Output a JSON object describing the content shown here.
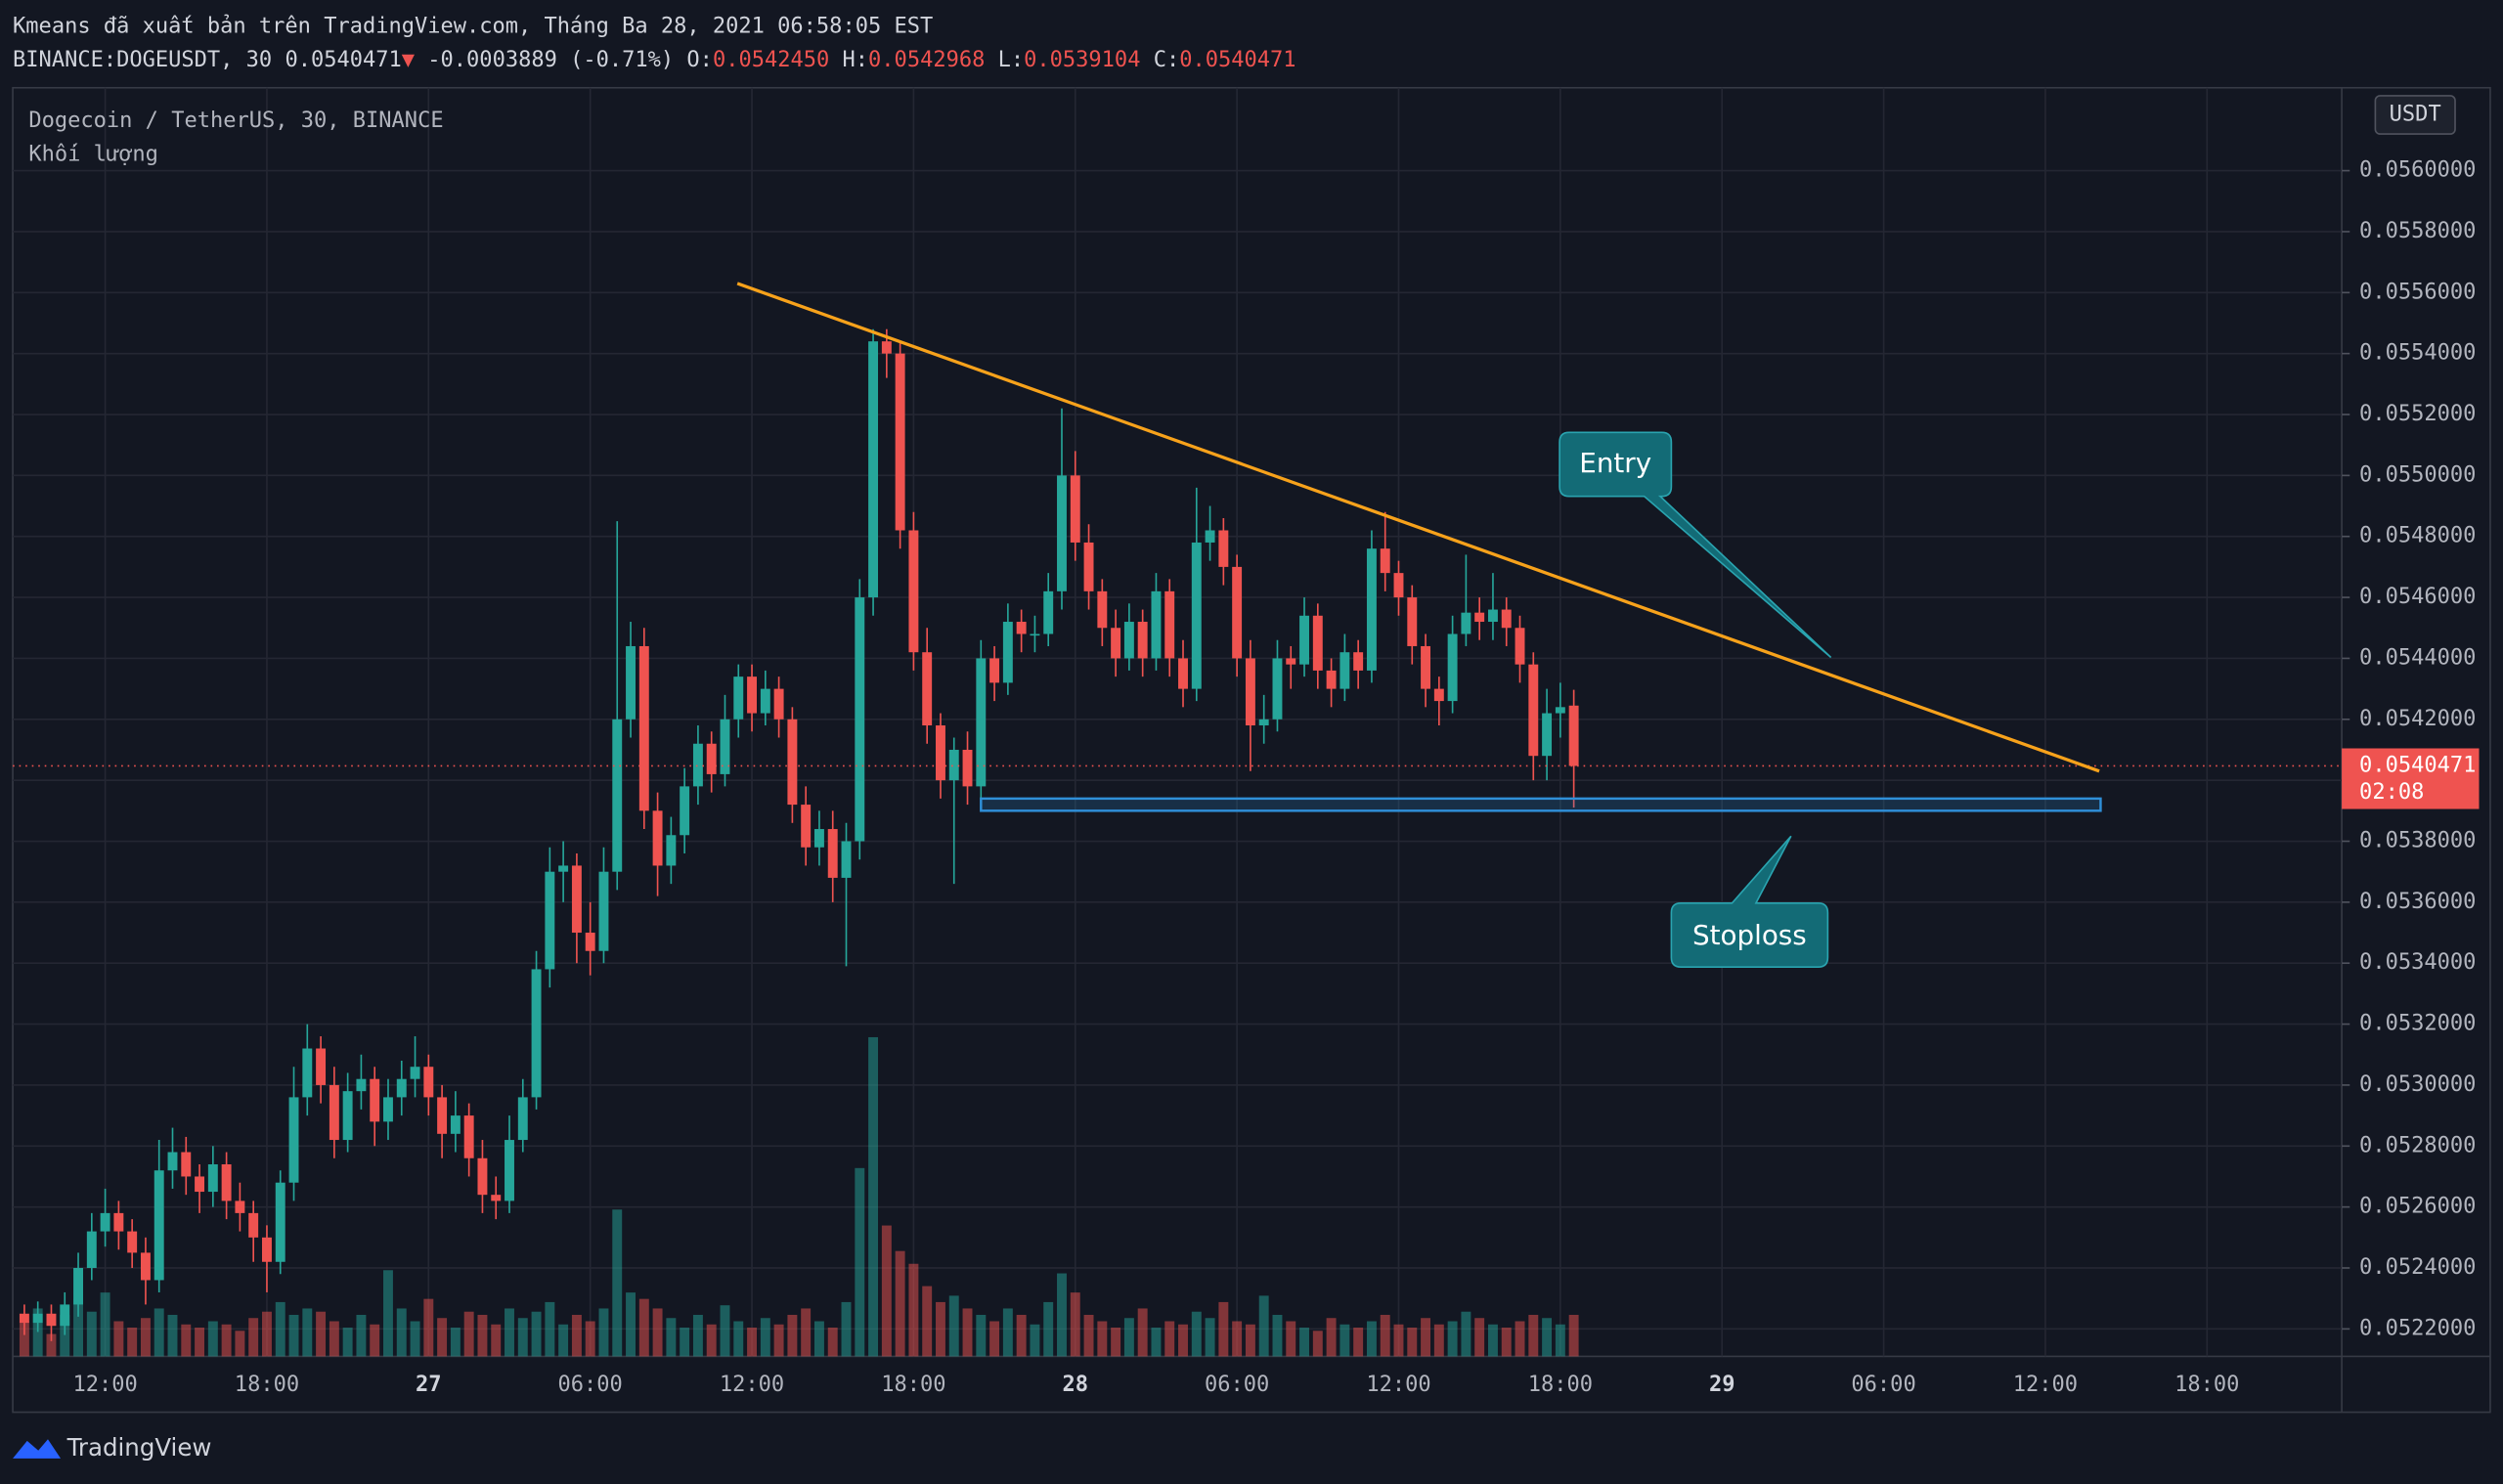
{
  "chart_data": {
    "type": "candlestick",
    "title": "Kmeans đã xuất bản trên TradingView.com, Tháng Ba 28, 2021 06:58:05 EST",
    "symbol": "BINANCE:DOGEUSDT, 30",
    "header_last": "0.0540471",
    "header_arrow": "▼",
    "header_change": "-0.0003889 (-0.71%)",
    "header_ohlc": [
      {
        "label": "O:",
        "value": "0.0542450"
      },
      {
        "label": "H:",
        "value": "0.0542968"
      },
      {
        "label": "L:",
        "value": "0.0539104"
      },
      {
        "label": "C:",
        "value": "0.0540471"
      }
    ],
    "legend": "Dogecoin / TetherUS, 30, BINANCE",
    "volume_label": "Khối lượng",
    "y_axis_label": "USDT",
    "up_color": "#26a69a",
    "down_color": "#ef5350",
    "xlim": [
      8.57,
      95
    ],
    "xticks": [
      {
        "value": 12,
        "label": "12:00"
      },
      {
        "value": 18,
        "label": "18:00"
      },
      {
        "value": 24,
        "label": "27"
      },
      {
        "value": 30,
        "label": "06:00"
      },
      {
        "value": 36,
        "label": "12:00"
      },
      {
        "value": 42,
        "label": "18:00"
      },
      {
        "value": 48,
        "label": "28"
      },
      {
        "value": 54,
        "label": "06:00"
      },
      {
        "value": 60,
        "label": "12:00"
      },
      {
        "value": 66,
        "label": "18:00"
      },
      {
        "value": 72,
        "label": "29"
      },
      {
        "value": 78,
        "label": "06:00"
      },
      {
        "value": 84,
        "label": "12:00"
      },
      {
        "value": 90,
        "label": "18:00"
      }
    ],
    "ylim": [
      0.05211,
      0.056272
    ],
    "yticks": [
      {
        "value": 0.0522,
        "label": "0.0522000"
      },
      {
        "value": 0.0524,
        "label": "0.0524000"
      },
      {
        "value": 0.0526,
        "label": "0.0526000"
      },
      {
        "value": 0.0528,
        "label": "0.0528000"
      },
      {
        "value": 0.053,
        "label": "0.0530000"
      },
      {
        "value": 0.0532,
        "label": "0.0532000"
      },
      {
        "value": 0.0534,
        "label": "0.0534000"
      },
      {
        "value": 0.0536,
        "label": "0.0536000"
      },
      {
        "value": 0.0538,
        "label": "0.0538000"
      },
      {
        "value": 0.054,
        "label": "0.0540000"
      },
      {
        "value": 0.0542,
        "label": "0.0542000"
      },
      {
        "value": 0.0544,
        "label": "0.0544000"
      },
      {
        "value": 0.0546,
        "label": "0.0546000"
      },
      {
        "value": 0.0548,
        "label": "0.0548000"
      },
      {
        "value": 0.055,
        "label": "0.0550000"
      },
      {
        "value": 0.0552,
        "label": "0.0552000"
      },
      {
        "value": 0.0554,
        "label": "0.0554000"
      },
      {
        "value": 0.0556,
        "label": "0.0556000"
      },
      {
        "value": 0.0558,
        "label": "0.0558000"
      },
      {
        "value": 0.056,
        "label": "0.0560000"
      }
    ],
    "grid": true,
    "x": [
      9,
      9.5,
      10,
      10.5,
      11,
      11.5,
      12,
      12.5,
      13,
      13.5,
      14,
      14.5,
      15,
      15.5,
      16,
      16.5,
      17,
      17.5,
      18,
      18.5,
      19,
      19.5,
      20,
      20.5,
      21,
      21.5,
      22,
      22.5,
      23,
      23.5,
      24,
      24.5,
      25,
      25.5,
      26,
      26.5,
      27,
      27.5,
      28,
      28.5,
      29,
      29.5,
      30,
      30.5,
      31,
      31.5,
      32,
      32.5,
      33,
      33.5,
      34,
      34.5,
      35,
      35.5,
      36,
      36.5,
      37,
      37.5,
      38,
      38.5,
      39,
      39.5,
      40,
      40.5,
      41,
      41.5,
      42,
      42.5,
      43,
      43.5,
      44,
      44.5,
      45,
      45.5,
      46,
      46.5,
      47,
      47.5,
      48,
      48.5,
      49,
      49.5,
      50,
      50.5,
      51,
      51.5,
      52,
      52.5,
      53,
      53.5,
      54,
      54.5,
      55,
      55.5,
      56,
      56.5,
      57,
      57.5,
      58,
      58.5,
      59,
      59.5,
      60,
      60.5,
      61,
      61.5,
      62,
      62.5,
      63,
      63.5,
      64,
      64.5,
      65,
      65.5,
      66,
      66.5
    ],
    "ohlc": [
      [
        0.05225,
        0.05228,
        0.05218,
        0.05222
      ],
      [
        0.05222,
        0.05229,
        0.05219,
        0.05225
      ],
      [
        0.05225,
        0.05228,
        0.05216,
        0.05221
      ],
      [
        0.05221,
        0.05232,
        0.05218,
        0.05228
      ],
      [
        0.05228,
        0.05245,
        0.05224,
        0.0524
      ],
      [
        0.0524,
        0.05258,
        0.05236,
        0.05252
      ],
      [
        0.05252,
        0.05266,
        0.05247,
        0.05258
      ],
      [
        0.05258,
        0.05262,
        0.05246,
        0.05252
      ],
      [
        0.05252,
        0.05256,
        0.0524,
        0.05245
      ],
      [
        0.05245,
        0.0525,
        0.05228,
        0.05236
      ],
      [
        0.05236,
        0.05282,
        0.05232,
        0.05272
      ],
      [
        0.05272,
        0.05286,
        0.05266,
        0.05278
      ],
      [
        0.05278,
        0.05283,
        0.05264,
        0.0527
      ],
      [
        0.0527,
        0.05274,
        0.05258,
        0.05265
      ],
      [
        0.05265,
        0.0528,
        0.0526,
        0.05274
      ],
      [
        0.05274,
        0.05278,
        0.05256,
        0.05262
      ],
      [
        0.05262,
        0.05268,
        0.05252,
        0.05258
      ],
      [
        0.05258,
        0.05262,
        0.05242,
        0.0525
      ],
      [
        0.0525,
        0.05254,
        0.05232,
        0.05242
      ],
      [
        0.05242,
        0.05272,
        0.05238,
        0.05268
      ],
      [
        0.05268,
        0.05306,
        0.05262,
        0.05296
      ],
      [
        0.05296,
        0.0532,
        0.0529,
        0.05312
      ],
      [
        0.05312,
        0.05316,
        0.05294,
        0.053
      ],
      [
        0.053,
        0.05306,
        0.05276,
        0.05282
      ],
      [
        0.05282,
        0.05304,
        0.05278,
        0.05298
      ],
      [
        0.05298,
        0.0531,
        0.05292,
        0.05302
      ],
      [
        0.05302,
        0.05306,
        0.0528,
        0.05288
      ],
      [
        0.05288,
        0.05302,
        0.05282,
        0.05296
      ],
      [
        0.05296,
        0.05308,
        0.0529,
        0.05302
      ],
      [
        0.05302,
        0.05316,
        0.05296,
        0.05306
      ],
      [
        0.05306,
        0.0531,
        0.0529,
        0.05296
      ],
      [
        0.05296,
        0.053,
        0.05276,
        0.05284
      ],
      [
        0.05284,
        0.05298,
        0.05278,
        0.0529
      ],
      [
        0.0529,
        0.05294,
        0.0527,
        0.05276
      ],
      [
        0.05276,
        0.05282,
        0.05258,
        0.05264
      ],
      [
        0.05264,
        0.0527,
        0.05256,
        0.05262
      ],
      [
        0.05262,
        0.0529,
        0.05258,
        0.05282
      ],
      [
        0.05282,
        0.05302,
        0.05278,
        0.05296
      ],
      [
        0.05296,
        0.05344,
        0.05292,
        0.05338
      ],
      [
        0.05338,
        0.05378,
        0.05332,
        0.0537
      ],
      [
        0.0537,
        0.0538,
        0.0536,
        0.05372
      ],
      [
        0.05372,
        0.05376,
        0.0534,
        0.0535
      ],
      [
        0.0535,
        0.0536,
        0.05336,
        0.05344
      ],
      [
        0.05344,
        0.05378,
        0.0534,
        0.0537
      ],
      [
        0.0537,
        0.05485,
        0.05364,
        0.0542
      ],
      [
        0.0542,
        0.05452,
        0.05414,
        0.05444
      ],
      [
        0.05444,
        0.0545,
        0.05384,
        0.0539
      ],
      [
        0.0539,
        0.05396,
        0.05362,
        0.05372
      ],
      [
        0.05372,
        0.05388,
        0.05366,
        0.05382
      ],
      [
        0.05382,
        0.05404,
        0.05376,
        0.05398
      ],
      [
        0.05398,
        0.05418,
        0.05392,
        0.05412
      ],
      [
        0.05412,
        0.05416,
        0.05396,
        0.05402
      ],
      [
        0.05402,
        0.05428,
        0.05398,
        0.0542
      ],
      [
        0.0542,
        0.05438,
        0.05414,
        0.05434
      ],
      [
        0.05434,
        0.05438,
        0.05416,
        0.05422
      ],
      [
        0.05422,
        0.05436,
        0.05418,
        0.0543
      ],
      [
        0.0543,
        0.05434,
        0.05414,
        0.0542
      ],
      [
        0.0542,
        0.05424,
        0.05386,
        0.05392
      ],
      [
        0.05392,
        0.05398,
        0.05372,
        0.05378
      ],
      [
        0.05378,
        0.0539,
        0.05372,
        0.05384
      ],
      [
        0.05384,
        0.0539,
        0.0536,
        0.05368
      ],
      [
        0.05368,
        0.05386,
        0.05339,
        0.0538
      ],
      [
        0.0538,
        0.05466,
        0.05374,
        0.0546
      ],
      [
        0.0546,
        0.05548,
        0.05454,
        0.05544
      ],
      [
        0.05544,
        0.05548,
        0.05532,
        0.0554
      ],
      [
        0.0554,
        0.05544,
        0.05476,
        0.05482
      ],
      [
        0.05482,
        0.05488,
        0.05436,
        0.05442
      ],
      [
        0.05442,
        0.0545,
        0.05412,
        0.05418
      ],
      [
        0.05418,
        0.05422,
        0.05394,
        0.054
      ],
      [
        0.054,
        0.05414,
        0.05366,
        0.0541
      ],
      [
        0.0541,
        0.05416,
        0.05392,
        0.05398
      ],
      [
        0.05398,
        0.05446,
        0.05392,
        0.0544
      ],
      [
        0.0544,
        0.05444,
        0.05426,
        0.05432
      ],
      [
        0.05432,
        0.05458,
        0.05428,
        0.05452
      ],
      [
        0.05452,
        0.05456,
        0.05442,
        0.05448
      ],
      [
        0.05448,
        0.05454,
        0.05442,
        0.05448
      ],
      [
        0.05448,
        0.05468,
        0.05444,
        0.05462
      ],
      [
        0.05462,
        0.05522,
        0.05456,
        0.055
      ],
      [
        0.055,
        0.05508,
        0.05472,
        0.05478
      ],
      [
        0.05478,
        0.05484,
        0.05456,
        0.05462
      ],
      [
        0.05462,
        0.05466,
        0.05444,
        0.0545
      ],
      [
        0.0545,
        0.05456,
        0.05434,
        0.0544
      ],
      [
        0.0544,
        0.05458,
        0.05436,
        0.05452
      ],
      [
        0.05452,
        0.05456,
        0.05434,
        0.0544
      ],
      [
        0.0544,
        0.05468,
        0.05436,
        0.05462
      ],
      [
        0.05462,
        0.05466,
        0.05434,
        0.0544
      ],
      [
        0.0544,
        0.05446,
        0.05424,
        0.0543
      ],
      [
        0.0543,
        0.05496,
        0.05426,
        0.05478
      ],
      [
        0.05478,
        0.0549,
        0.05472,
        0.05482
      ],
      [
        0.05482,
        0.05486,
        0.05464,
        0.0547
      ],
      [
        0.0547,
        0.05474,
        0.05434,
        0.0544
      ],
      [
        0.0544,
        0.05446,
        0.05403,
        0.05418
      ],
      [
        0.05418,
        0.05428,
        0.05412,
        0.0542
      ],
      [
        0.0542,
        0.05446,
        0.05416,
        0.0544
      ],
      [
        0.0544,
        0.05444,
        0.0543,
        0.05438
      ],
      [
        0.05438,
        0.0546,
        0.05434,
        0.05454
      ],
      [
        0.05454,
        0.05458,
        0.0543,
        0.05436
      ],
      [
        0.05436,
        0.0544,
        0.05424,
        0.0543
      ],
      [
        0.0543,
        0.05448,
        0.05426,
        0.05442
      ],
      [
        0.05442,
        0.05446,
        0.0543,
        0.05436
      ],
      [
        0.05436,
        0.05482,
        0.05432,
        0.05476
      ],
      [
        0.05476,
        0.05488,
        0.05462,
        0.05468
      ],
      [
        0.05468,
        0.05472,
        0.05454,
        0.0546
      ],
      [
        0.0546,
        0.05464,
        0.05438,
        0.05444
      ],
      [
        0.05444,
        0.05448,
        0.05424,
        0.0543
      ],
      [
        0.0543,
        0.05434,
        0.05418,
        0.05426
      ],
      [
        0.05426,
        0.05454,
        0.05422,
        0.05448
      ],
      [
        0.05448,
        0.05474,
        0.05444,
        0.05455
      ],
      [
        0.05455,
        0.0546,
        0.05446,
        0.05452
      ],
      [
        0.05452,
        0.05468,
        0.05446,
        0.05456
      ],
      [
        0.05456,
        0.0546,
        0.05444,
        0.0545
      ],
      [
        0.0545,
        0.05454,
        0.05432,
        0.05438
      ],
      [
        0.05438,
        0.05442,
        0.054,
        0.05408
      ],
      [
        0.05408,
        0.0543,
        0.054,
        0.05422
      ],
      [
        0.05422,
        0.05432,
        0.05414,
        0.05424
      ],
      [
        0.054245,
        0.0542968,
        0.0539104,
        0.0540471
      ]
    ],
    "volume": [
      22,
      30,
      14,
      26,
      36,
      28,
      40,
      22,
      18,
      24,
      30,
      26,
      20,
      18,
      22,
      20,
      16,
      24,
      28,
      34,
      26,
      30,
      28,
      22,
      18,
      26,
      20,
      54,
      30,
      22,
      36,
      24,
      18,
      28,
      26,
      20,
      30,
      24,
      28,
      34,
      20,
      26,
      22,
      30,
      92,
      40,
      36,
      30,
      24,
      18,
      26,
      20,
      32,
      22,
      18,
      24,
      20,
      26,
      30,
      22,
      18,
      34,
      118,
      200,
      82,
      66,
      58,
      44,
      34,
      38,
      30,
      26,
      22,
      30,
      26,
      20,
      34,
      52,
      40,
      26,
      22,
      18,
      24,
      30,
      18,
      22,
      20,
      28,
      24,
      34,
      22,
      20,
      38,
      26,
      22,
      18,
      16,
      24,
      20,
      18,
      22,
      26,
      20,
      18,
      24,
      20,
      22,
      28,
      24,
      20,
      18,
      22,
      26,
      24,
      20,
      26
    ],
    "last_price": 0.0540471,
    "countdown": "02:08",
    "trendline": {
      "color": "#f7a21b",
      "x": [
        35.46,
        86.0
      ],
      "y": [
        0.05563,
        0.05403
      ]
    },
    "stoploss_zone": {
      "color": "#2f8fd8",
      "x": [
        44.5,
        86.05
      ],
      "y": [
        0.0539,
        0.05394
      ]
    },
    "annotations": [
      {
        "text": "Entry"
      },
      {
        "text": "Stoploss"
      }
    ],
    "brand": "TradingView"
  }
}
